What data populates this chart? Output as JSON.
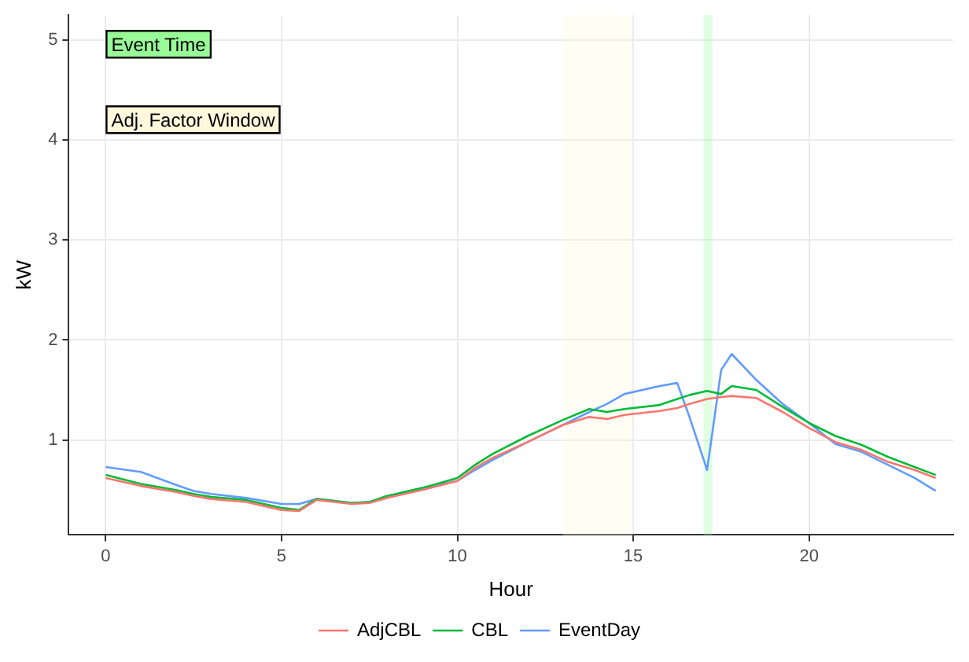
{
  "chart_data": {
    "type": "line",
    "xlabel": "Hour",
    "ylabel": "kW",
    "x": [
      0,
      1,
      2,
      2.5,
      3,
      4,
      5,
      5.5,
      6,
      7,
      7.5,
      8,
      9,
      10,
      10.5,
      11,
      12,
      13,
      13.75,
      14.25,
      14.75,
      15.75,
      16.25,
      16.6,
      17.1,
      17.5,
      17.8,
      18.5,
      19.25,
      20,
      20.75,
      21.5,
      22.25,
      23,
      23.6
    ],
    "series": [
      {
        "name": "AdjCBL",
        "color": "#f8766d",
        "values": [
          0.62,
          0.54,
          0.48,
          0.44,
          0.41,
          0.38,
          0.3,
          0.29,
          0.4,
          0.36,
          0.37,
          0.42,
          0.5,
          0.59,
          0.72,
          0.82,
          0.98,
          1.15,
          1.23,
          1.21,
          1.25,
          1.29,
          1.32,
          1.36,
          1.41,
          1.43,
          1.44,
          1.42,
          1.28,
          1.12,
          0.98,
          0.9,
          0.78,
          0.7,
          0.62
        ]
      },
      {
        "name": "CBL",
        "color": "#00ba38",
        "values": [
          0.65,
          0.56,
          0.5,
          0.46,
          0.43,
          0.4,
          0.32,
          0.3,
          0.41,
          0.37,
          0.38,
          0.44,
          0.52,
          0.62,
          0.75,
          0.86,
          1.04,
          1.2,
          1.31,
          1.28,
          1.31,
          1.35,
          1.41,
          1.45,
          1.49,
          1.46,
          1.54,
          1.5,
          1.33,
          1.17,
          1.04,
          0.95,
          0.83,
          0.73,
          0.65
        ]
      },
      {
        "name": "EventDay",
        "color": "#619cff",
        "values": [
          0.73,
          0.68,
          0.55,
          0.49,
          0.46,
          0.42,
          0.36,
          0.36,
          0.41,
          0.37,
          0.38,
          0.42,
          0.52,
          0.59,
          0.7,
          0.8,
          0.98,
          1.15,
          1.28,
          1.36,
          1.46,
          1.54,
          1.57,
          1.23,
          0.7,
          1.7,
          1.86,
          1.6,
          1.36,
          1.17,
          0.96,
          0.88,
          0.75,
          0.62,
          0.49
        ]
      }
    ],
    "xlim": [
      -1.05,
      24.1
    ],
    "xticks": [
      0,
      5,
      10,
      15,
      20
    ],
    "ylim": [
      0.05,
      5.25
    ],
    "yticks": [
      1,
      2,
      3,
      4,
      5
    ],
    "bands": [
      {
        "axis": "x",
        "from": 17,
        "to": 17.25,
        "color": "#98fb98"
      },
      {
        "axis": "x",
        "from": 13,
        "to": 15,
        "color": "#fff8dc"
      }
    ],
    "annotations": [
      "Event Time",
      "Adj. Factor Window"
    ],
    "grid": true,
    "legend": "bottom",
    "marker": "none",
    "line_style": "solid"
  }
}
